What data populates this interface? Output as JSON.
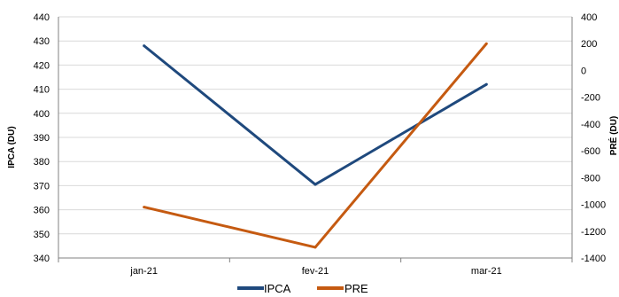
{
  "chart_data": {
    "type": "line",
    "categories": [
      "jan-21",
      "fev-21",
      "mar-21"
    ],
    "y_left": {
      "label": "IPCA (DU)",
      "min": 340,
      "max": 440,
      "step": 10,
      "ticks": [
        "340",
        "350",
        "360",
        "370",
        "380",
        "390",
        "400",
        "410",
        "420",
        "430",
        "440"
      ]
    },
    "y_right": {
      "label": "PRÉ (DU)",
      "min": -1400,
      "max": 400,
      "step": 200,
      "ticks": [
        "-1400",
        "-1200",
        "-1000",
        "-800",
        "-600",
        "-400",
        "-200",
        "0",
        "200",
        "400"
      ]
    },
    "series": [
      {
        "name": "IPCA",
        "axis": "left",
        "color": "#1f497d",
        "values": [
          428,
          370.5,
          412
        ]
      },
      {
        "name": "PRE",
        "axis": "right",
        "color": "#c55a11",
        "values": [
          -1020,
          -1320,
          200
        ]
      }
    ],
    "grid": true,
    "legend": "bottom"
  }
}
